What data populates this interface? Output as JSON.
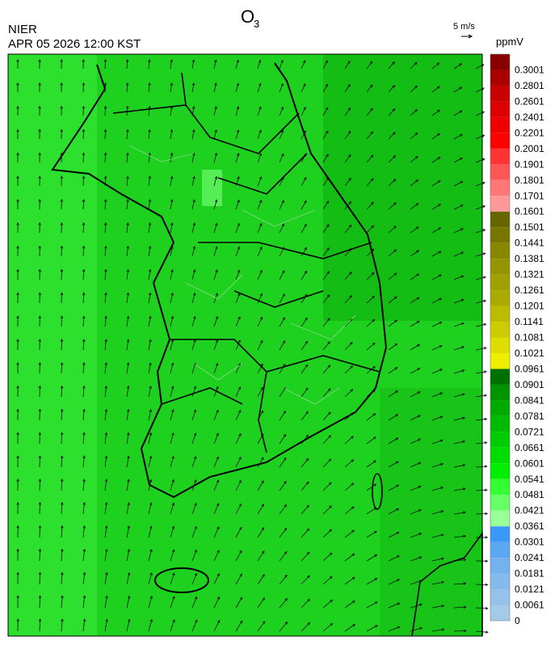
{
  "header": {
    "title": "O",
    "title_subscript": "3",
    "agency": "NIER",
    "datetime": "APR 05 2026 12:00 KST",
    "vector_scale": "5 m/s"
  },
  "colorbar": {
    "unit": "ppmV",
    "ticks": [
      0,
      0.0061,
      0.0121,
      0.0181,
      0.0241,
      0.0301,
      0.0361,
      0.0421,
      0.0481,
      0.0541,
      0.0601,
      0.0661,
      0.0721,
      0.0781,
      0.0841,
      0.0901,
      0.0961,
      0.1021,
      0.1081,
      0.1141,
      0.1201,
      0.1261,
      0.1321,
      0.1381,
      0.1441,
      0.1501,
      0.1601,
      0.1701,
      0.1801,
      0.1901,
      0.2001,
      0.2201,
      0.2401,
      0.2601,
      0.2801,
      0.3001
    ],
    "colors": [
      "#a3cbe8",
      "#94c2ea",
      "#85baec",
      "#73b1ef",
      "#5ca7f2",
      "#3a98f8",
      "#99ff99",
      "#66ff66",
      "#33ff33",
      "#00ee00",
      "#00dd00",
      "#00cc00",
      "#00bb00",
      "#00aa00",
      "#009400",
      "#007000",
      "#eeee00",
      "#dddd00",
      "#cccc00",
      "#bbbb00",
      "#aaaa00",
      "#a0a000",
      "#949400",
      "#888800",
      "#777700",
      "#666600",
      "#ff9999",
      "#ff7777",
      "#ff5555",
      "#ff3333",
      "#ff0000",
      "#ee0000",
      "#dd0000",
      "#c80000",
      "#aa0000",
      "#880000"
    ]
  }
}
